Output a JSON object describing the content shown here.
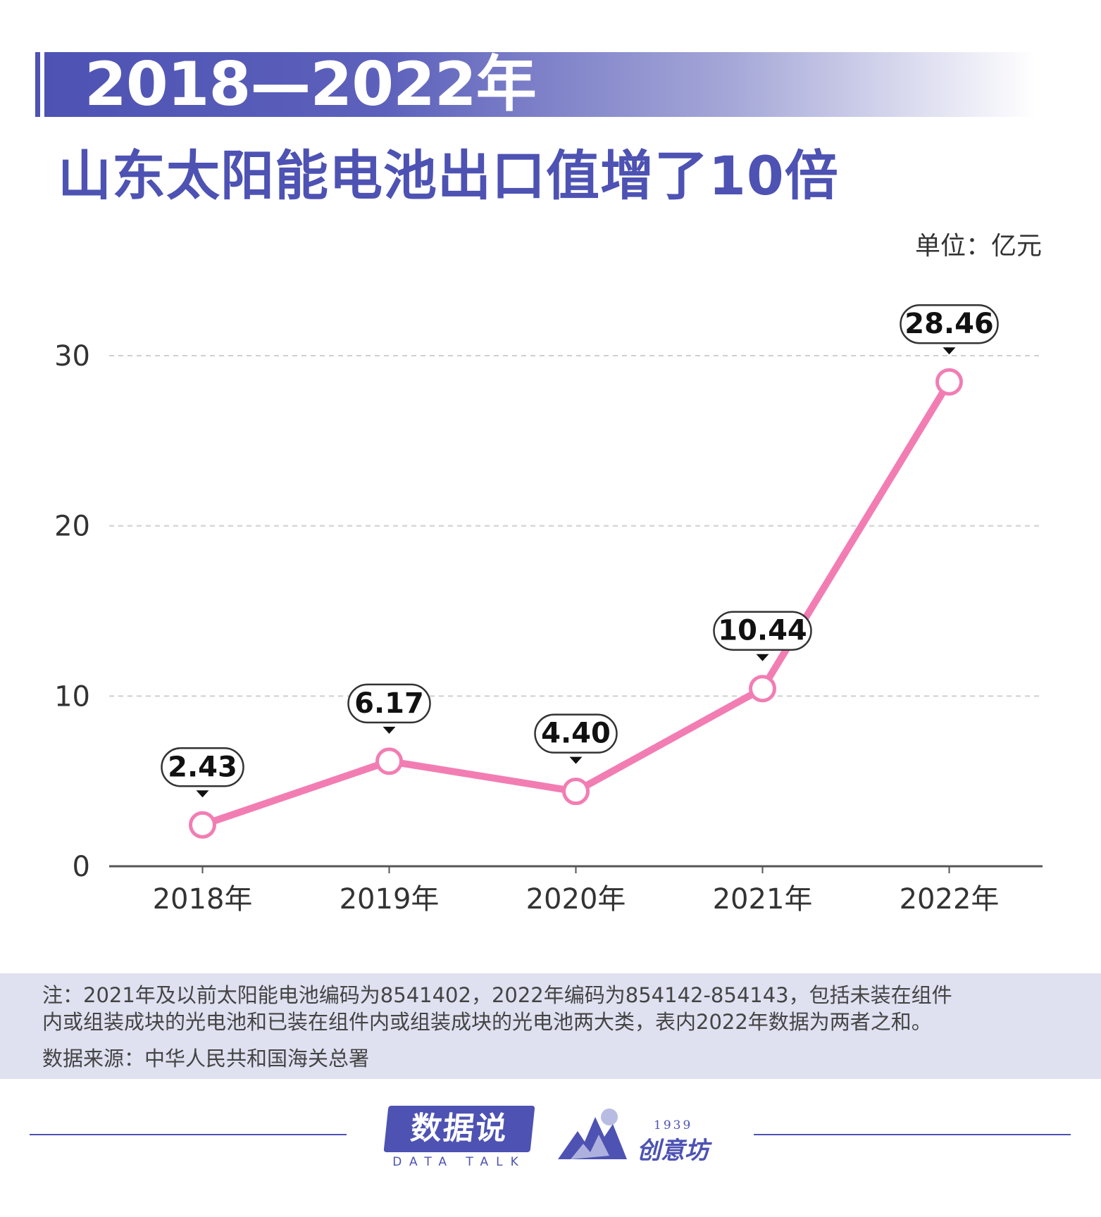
{
  "header": {
    "title_line1": "2018—2022年",
    "title_line2": "山东太阳能电池出口值增了10倍",
    "unit": "单位：亿元"
  },
  "colors": {
    "accent": "#4d52b3",
    "line": "#f27db3",
    "note_bg": "#dfe1f1"
  },
  "chart_data": {
    "type": "line",
    "title": "2018—2022年 山东太阳能电池出口值增了10倍",
    "ylabel": "单位：亿元",
    "xlabel": "",
    "categories": [
      "2018年",
      "2019年",
      "2020年",
      "2021年",
      "2022年"
    ],
    "values": [
      2.43,
      6.17,
      4.4,
      10.44,
      28.46
    ],
    "data_labels": [
      "2.43",
      "6.17",
      "4.40",
      "10.44",
      "28.46"
    ],
    "yticks": [
      0,
      10,
      20,
      30
    ],
    "ytick_labels": [
      "0",
      "10",
      "20",
      "30"
    ],
    "ylim": [
      0,
      30
    ],
    "grid": true
  },
  "notes": {
    "line1": "注：2021年及以前太阳能电池编码为8541402，2022年编码为854142-854143，包括未装在组件",
    "line2": "内或组装成块的光电池和已装在组件内或组装成块的光电池两大类，表内2022年数据为两者之和。",
    "source": "数据来源：中华人民共和国海关总署"
  },
  "footer": {
    "logo1_text": "数据说",
    "logo1_sub": "DATA TALK",
    "logo2_year": "1939",
    "logo2_text": "创意坊"
  }
}
